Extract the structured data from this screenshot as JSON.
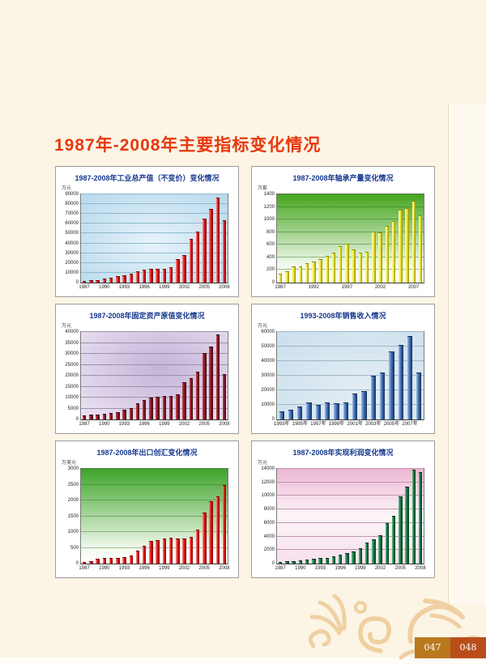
{
  "page": {
    "title": "1987年-2008年主要指标变化情况",
    "title_color": "#e8380d",
    "background_color": "#fcf5e6"
  },
  "footer": {
    "page_left": "047",
    "page_right": "048",
    "page_left_bg": "#b8791e",
    "page_right_bg": "#b94e1b",
    "decoration": "dragon-cloud-pattern",
    "decoration_color": "#f0d0a2"
  },
  "chart_data": [
    {
      "type": "bar",
      "title": "1987-2008年工业总产值（不变价）变化情况",
      "unit": "万元",
      "ylim": [
        0,
        90000
      ],
      "ystep": 10000,
      "grid": true,
      "categories": [
        "1987",
        "1988",
        "1989",
        "1990",
        "1991",
        "1992",
        "1993",
        "1994",
        "1995",
        "1996",
        "1997",
        "1998",
        "1999",
        "2000",
        "2001",
        "2002",
        "2003",
        "2004",
        "2005",
        "2006",
        "2007",
        "2008"
      ],
      "values": [
        800,
        1300,
        1700,
        3000,
        4500,
        5500,
        6500,
        8000,
        10500,
        12500,
        13000,
        13000,
        13500,
        15000,
        23500,
        27500,
        43500,
        51500,
        64500,
        74500,
        86000,
        62500
      ],
      "x_tick_indices": [
        0,
        3,
        6,
        9,
        12,
        15,
        18,
        21
      ],
      "x_tick_labels": [
        "1987",
        "1990",
        "1993",
        "1996",
        "1999",
        "2002",
        "2005",
        "2008"
      ],
      "style": {
        "bg": {
          "kind": "radial",
          "at": "50% 55%",
          "stops": [
            [
              0,
              "#e7f3fb"
            ],
            [
              1,
              "#b7d9ec"
            ]
          ]
        },
        "grid_color": "#8fb9ce",
        "bar_color": "#e81212",
        "bar_edge": "#7a0404",
        "bar_highlight": "#ff9a9a"
      }
    },
    {
      "type": "bar",
      "title": "1987-2008年轴承产量变化情况",
      "unit": "万套",
      "ylim": [
        0,
        1400
      ],
      "ystep": 200,
      "grid": true,
      "categories": [
        "1987",
        "1988",
        "1989",
        "1990",
        "1991",
        "1992",
        "1993",
        "1994",
        "1995",
        "1996",
        "1997",
        "1998",
        "1999",
        "2000",
        "2001",
        "2002",
        "2003",
        "2004",
        "2005",
        "2006",
        "2007",
        "2008"
      ],
      "values": [
        130,
        170,
        240,
        250,
        300,
        320,
        360,
        410,
        460,
        570,
        610,
        510,
        460,
        470,
        800,
        780,
        890,
        960,
        1140,
        1170,
        1290,
        1050
      ],
      "x_tick_indices": [
        0,
        5,
        10,
        15,
        20
      ],
      "x_tick_labels": [
        "1987",
        "1992",
        "1997",
        "2002",
        "2007"
      ],
      "style": {
        "bg": {
          "kind": "linear",
          "stops": [
            [
              0,
              "#46a51e"
            ],
            [
              0.8,
              "#f2f9ee"
            ],
            [
              1,
              "#ffffff"
            ]
          ]
        },
        "grid_color": "rgba(40,110,20,0.45)",
        "bar_color": "#f5ec3a",
        "bar_edge": "#8f8c00",
        "bar_highlight": "#fffdc0"
      }
    },
    {
      "type": "bar",
      "title": "1987-2008年固定资产原值变化情况",
      "unit": "万元",
      "ylim": [
        0,
        40000
      ],
      "ystep": 5000,
      "grid": true,
      "categories": [
        "1987",
        "1988",
        "1989",
        "1990",
        "1991",
        "1992",
        "1993",
        "1994",
        "1995",
        "1996",
        "1997",
        "1998",
        "1999",
        "2000",
        "2001",
        "2002",
        "2003",
        "2004",
        "2005",
        "2006",
        "2007",
        "2008"
      ],
      "values": [
        1500,
        1800,
        2000,
        2300,
        2600,
        3000,
        4000,
        5000,
        7000,
        8500,
        9500,
        10000,
        10500,
        10500,
        11000,
        16500,
        18500,
        21500,
        30000,
        33000,
        38500,
        20500
      ],
      "x_tick_indices": [
        0,
        3,
        6,
        9,
        12,
        15,
        18,
        21
      ],
      "x_tick_labels": [
        "1987",
        "1990",
        "1993",
        "1996",
        "1999",
        "2002",
        "2005",
        "2008"
      ],
      "style": {
        "bg": {
          "kind": "radial",
          "at": "55% 40%",
          "stops": [
            [
              0,
              "#c4b3d8"
            ],
            [
              1,
              "#ece4f4"
            ]
          ]
        },
        "grid_color": "#9b94a8",
        "bar_color": "#8e1622",
        "bar_edge": "#38060b",
        "bar_highlight": "#c2505c"
      }
    },
    {
      "type": "bar",
      "title": "1993-2008年销售收入情况",
      "unit": "万元",
      "ylim": [
        0,
        60000
      ],
      "ystep": 10000,
      "grid": true,
      "categories": [
        "1993",
        "1994",
        "1995",
        "1996",
        "1997",
        "1998",
        "1999",
        "2000",
        "2001",
        "2002",
        "2003",
        "2004",
        "2005",
        "2006",
        "2007",
        "2008"
      ],
      "values": [
        5000,
        6000,
        8500,
        11000,
        9500,
        11200,
        10500,
        11000,
        17000,
        19000,
        29500,
        31500,
        46000,
        50500,
        56500,
        31500
      ],
      "x_tick_indices": [
        0,
        2,
        4,
        6,
        8,
        10,
        12,
        14
      ],
      "x_tick_labels": [
        "1993年",
        "1995年",
        "1997年",
        "1999年",
        "2001年",
        "2003年",
        "2005年",
        "2007年"
      ],
      "style": {
        "bg": {
          "kind": "radial",
          "at": "60% 70%",
          "stops": [
            [
              0,
              "#e3edf5"
            ],
            [
              1,
              "#ccdfec"
            ]
          ]
        },
        "grid_color": "#9fb8c9",
        "bar_color": "#3f6eb5",
        "bar_edge": "#152f56",
        "bar_highlight": "#9fc2e8"
      }
    },
    {
      "type": "bar",
      "title": "1987-2008年出口创汇变化情况",
      "unit": "万美元",
      "ylim": [
        0,
        3000
      ],
      "ystep": 500,
      "grid": true,
      "categories": [
        "1987",
        "1988",
        "1989",
        "1990",
        "1991",
        "1992",
        "1993",
        "1994",
        "1995",
        "1996",
        "1997",
        "1998",
        "1999",
        "2000",
        "2001",
        "2002",
        "2003",
        "2004",
        "2005",
        "2006",
        "2007",
        "2008"
      ],
      "values": [
        20,
        60,
        130,
        160,
        150,
        160,
        170,
        230,
        380,
        550,
        700,
        720,
        780,
        800,
        760,
        780,
        820,
        1050,
        1600,
        1950,
        2100,
        2450
      ],
      "x_tick_indices": [
        0,
        3,
        6,
        9,
        12,
        15,
        18,
        21
      ],
      "x_tick_labels": [
        "1987",
        "1990",
        "1993",
        "1996",
        "1999",
        "2002",
        "2005",
        "2008"
      ],
      "style": {
        "bg": {
          "kind": "linear",
          "stops": [
            [
              0,
              "#3da329"
            ],
            [
              0.85,
              "#f4faf0"
            ],
            [
              1,
              "#ffffff"
            ]
          ]
        },
        "grid_color": "rgba(40,110,20,0.4)",
        "bar_color": "#e81212",
        "bar_edge": "#7a0404",
        "bar_highlight": "#ff9a9a"
      }
    },
    {
      "type": "bar",
      "title": "1987-2008年实现利润变化情况",
      "unit": "万元",
      "ylim": [
        0,
        14000
      ],
      "ystep": 2000,
      "grid": true,
      "categories": [
        "1987",
        "1988",
        "1989",
        "1990",
        "1991",
        "1992",
        "1993",
        "1994",
        "1995",
        "1996",
        "1997",
        "1998",
        "1999",
        "2000",
        "2001",
        "2002",
        "2003",
        "2004",
        "2005",
        "2006",
        "2007",
        "2008"
      ],
      "values": [
        100,
        200,
        300,
        400,
        450,
        600,
        700,
        750,
        1000,
        1200,
        1400,
        1700,
        2200,
        3000,
        3500,
        4100,
        5900,
        7000,
        9800,
        11200,
        13800,
        13400
      ],
      "x_tick_indices": [
        0,
        3,
        6,
        9,
        12,
        15,
        18,
        21
      ],
      "x_tick_labels": [
        "1987",
        "1990",
        "1993",
        "1996",
        "1999",
        "2002",
        "2005",
        "2008"
      ],
      "style": {
        "bg": {
          "kind": "linear",
          "stops": [
            [
              0,
              "#ecb7d2"
            ],
            [
              0.5,
              "#fdf6fa"
            ],
            [
              1,
              "#f6dfec"
            ]
          ]
        },
        "grid_color": "#c493ad",
        "bar_color": "#157a40",
        "bar_edge": "#05351c",
        "bar_highlight": "#6ec493"
      }
    }
  ]
}
